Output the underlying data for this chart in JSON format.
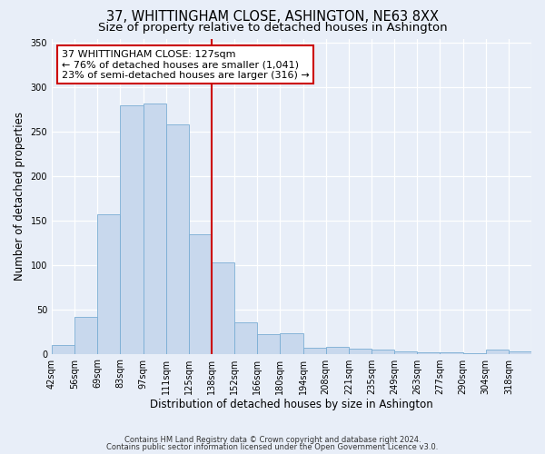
{
  "title": "37, WHITTINGHAM CLOSE, ASHINGTON, NE63 8XX",
  "subtitle": "Size of property relative to detached houses in Ashington",
  "xlabel": "Distribution of detached houses by size in Ashington",
  "ylabel": "Number of detached properties",
  "bin_labels": [
    "42sqm",
    "56sqm",
    "69sqm",
    "83sqm",
    "97sqm",
    "111sqm",
    "125sqm",
    "138sqm",
    "152sqm",
    "166sqm",
    "180sqm",
    "194sqm",
    "208sqm",
    "221sqm",
    "235sqm",
    "249sqm",
    "263sqm",
    "277sqm",
    "290sqm",
    "304sqm",
    "318sqm"
  ],
  "bar_heights": [
    10,
    42,
    157,
    280,
    282,
    258,
    135,
    103,
    35,
    22,
    23,
    7,
    8,
    6,
    5,
    3,
    2,
    2,
    1,
    5,
    3
  ],
  "bar_color": "#c8d8ed",
  "bar_edge_color": "#7aadd4",
  "vline_x_index": 6,
  "vline_color": "#cc0000",
  "annotation_title": "37 WHITTINGHAM CLOSE: 127sqm",
  "annotation_line1": "← 76% of detached houses are smaller (1,041)",
  "annotation_line2": "23% of semi-detached houses are larger (316) →",
  "annotation_box_facecolor": "#ffffff",
  "annotation_box_edgecolor": "#cc0000",
  "ylim": [
    0,
    355
  ],
  "yticks": [
    0,
    50,
    100,
    150,
    200,
    250,
    300,
    350
  ],
  "footer1": "Contains HM Land Registry data © Crown copyright and database right 2024.",
  "footer2": "Contains public sector information licensed under the Open Government Licence v3.0.",
  "fig_facecolor": "#e8eef8",
  "plot_facecolor": "#e8eef8",
  "title_fontsize": 10.5,
  "subtitle_fontsize": 9.5,
  "ylabel_fontsize": 8.5,
  "xlabel_fontsize": 8.5,
  "tick_fontsize": 7,
  "annotation_fontsize": 8,
  "footer_fontsize": 6
}
